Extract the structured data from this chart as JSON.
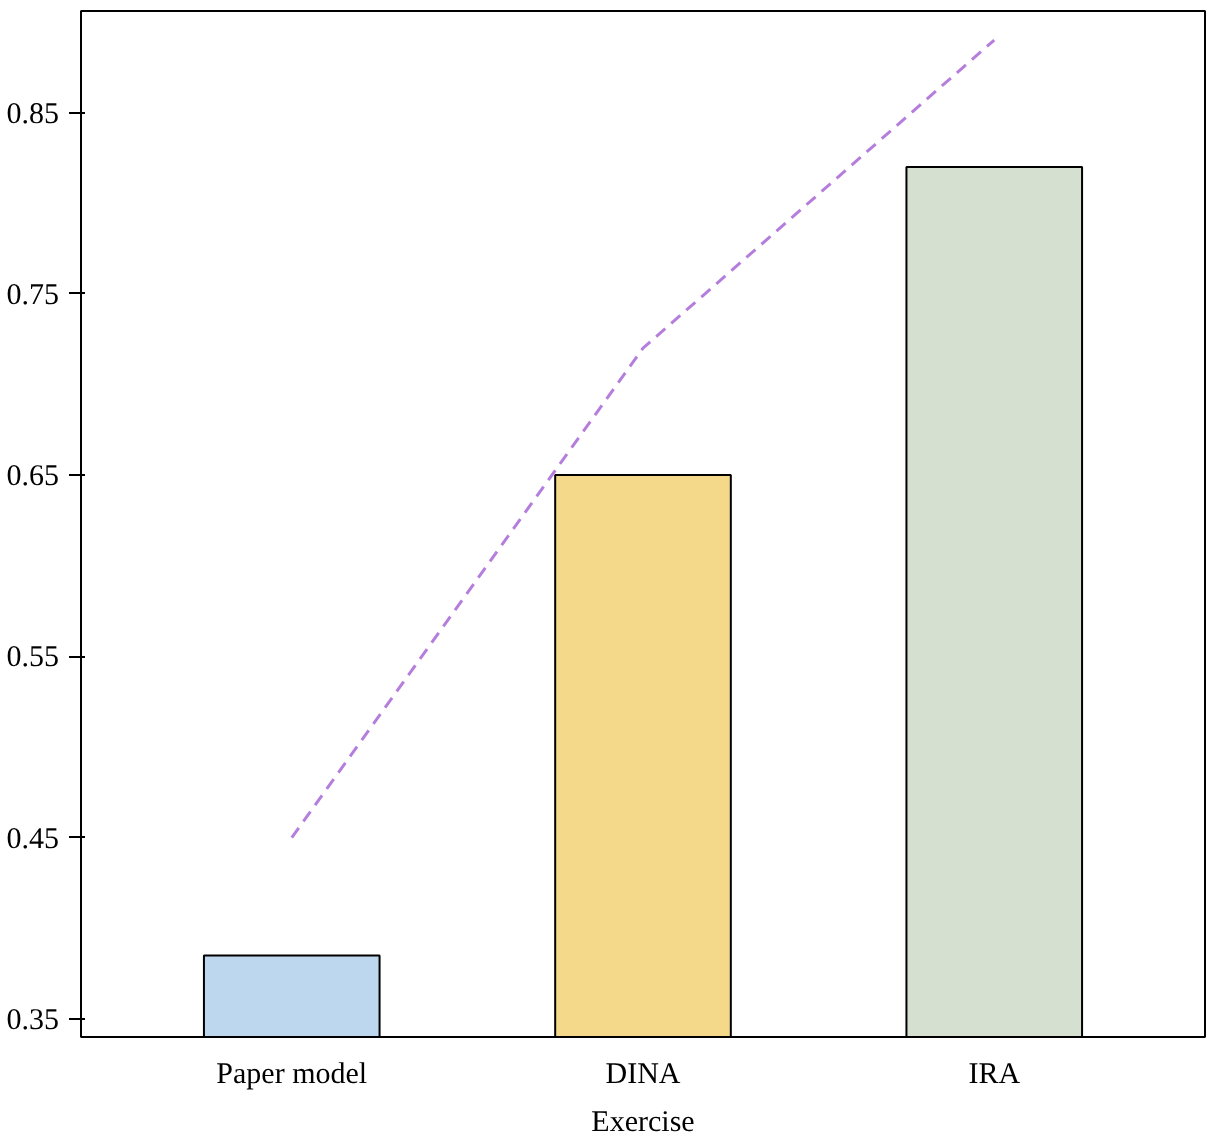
{
  "chart_data": {
    "type": "bar",
    "xlabel": "Exercise",
    "categories": [
      "Paper model",
      "DINA",
      "IRA"
    ],
    "values": [
      0.385,
      0.65,
      0.82
    ],
    "colors": [
      "#bdd7ee",
      "#f5d98a",
      "#d5e0d0"
    ],
    "series": [
      {
        "type": "line",
        "color": "#b57edc",
        "values": [
          0.45,
          0.72,
          0.89
        ],
        "line_style": "dashed"
      }
    ],
    "ylim": [
      0.34,
      0.906
    ],
    "yticks": [
      0.35,
      0.45,
      0.55,
      0.65,
      0.75,
      0.85
    ],
    "grid": false
  }
}
